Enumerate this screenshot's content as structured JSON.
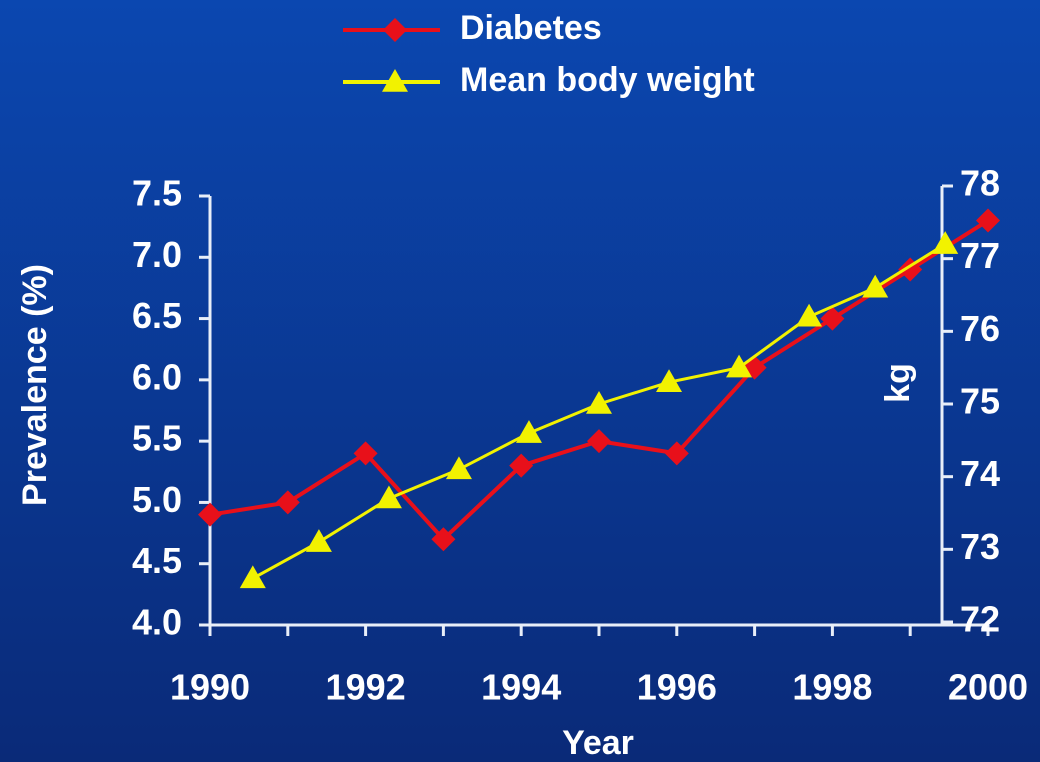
{
  "chart_data": {
    "type": "line",
    "xlabel": "Year",
    "ylabel": "Prevalence (%)",
    "y2label": "kg",
    "xlim": [
      1990,
      2000
    ],
    "xticks": [
      1990,
      1992,
      1994,
      1996,
      1998,
      2000
    ],
    "xminorticks": [
      1991,
      1993,
      1995,
      1997,
      1999
    ],
    "ylim": [
      4,
      7.5
    ],
    "yticks": [
      {
        "value": 4,
        "label": "4.0"
      },
      {
        "value": 4.5,
        "label": "4.5"
      },
      {
        "value": 5,
        "label": "5.0"
      },
      {
        "value": 5.5,
        "label": "5.5"
      },
      {
        "value": 6,
        "label": "6.0"
      },
      {
        "value": 6.5,
        "label": "6.5"
      },
      {
        "value": 7,
        "label": "7.0"
      },
      {
        "value": 7.5,
        "label": "7.5"
      }
    ],
    "y2lim": [
      72,
      78
    ],
    "y2ticks": [
      72,
      73,
      74,
      75,
      76,
      77,
      78
    ],
    "grid": false,
    "series": [
      {
        "name": "Diabetes",
        "color": "#e8101a",
        "marker": "diamond",
        "x": [
          1990,
          1991,
          1992,
          1993,
          1994,
          1995,
          1996,
          1997,
          1998,
          1999,
          2000
        ],
        "values": [
          4.9,
          5.0,
          5.4,
          4.7,
          5.3,
          5.5,
          5.4,
          6.1,
          6.5,
          6.9,
          7.3
        ]
      },
      {
        "name": "Mean body weight",
        "color": "#f2f200",
        "marker": "triangle",
        "axis": "y2",
        "x": [
          1990.55,
          1991.4,
          1992.3,
          1993.2,
          1994.1,
          1995.0,
          1995.9,
          1996.8,
          1997.7,
          1998.55,
          1999.45
        ],
        "values": [
          72.6,
          73.1,
          73.7,
          74.1,
          74.6,
          75.0,
          75.3,
          75.5,
          76.2,
          76.6,
          77.2
        ]
      }
    ]
  }
}
